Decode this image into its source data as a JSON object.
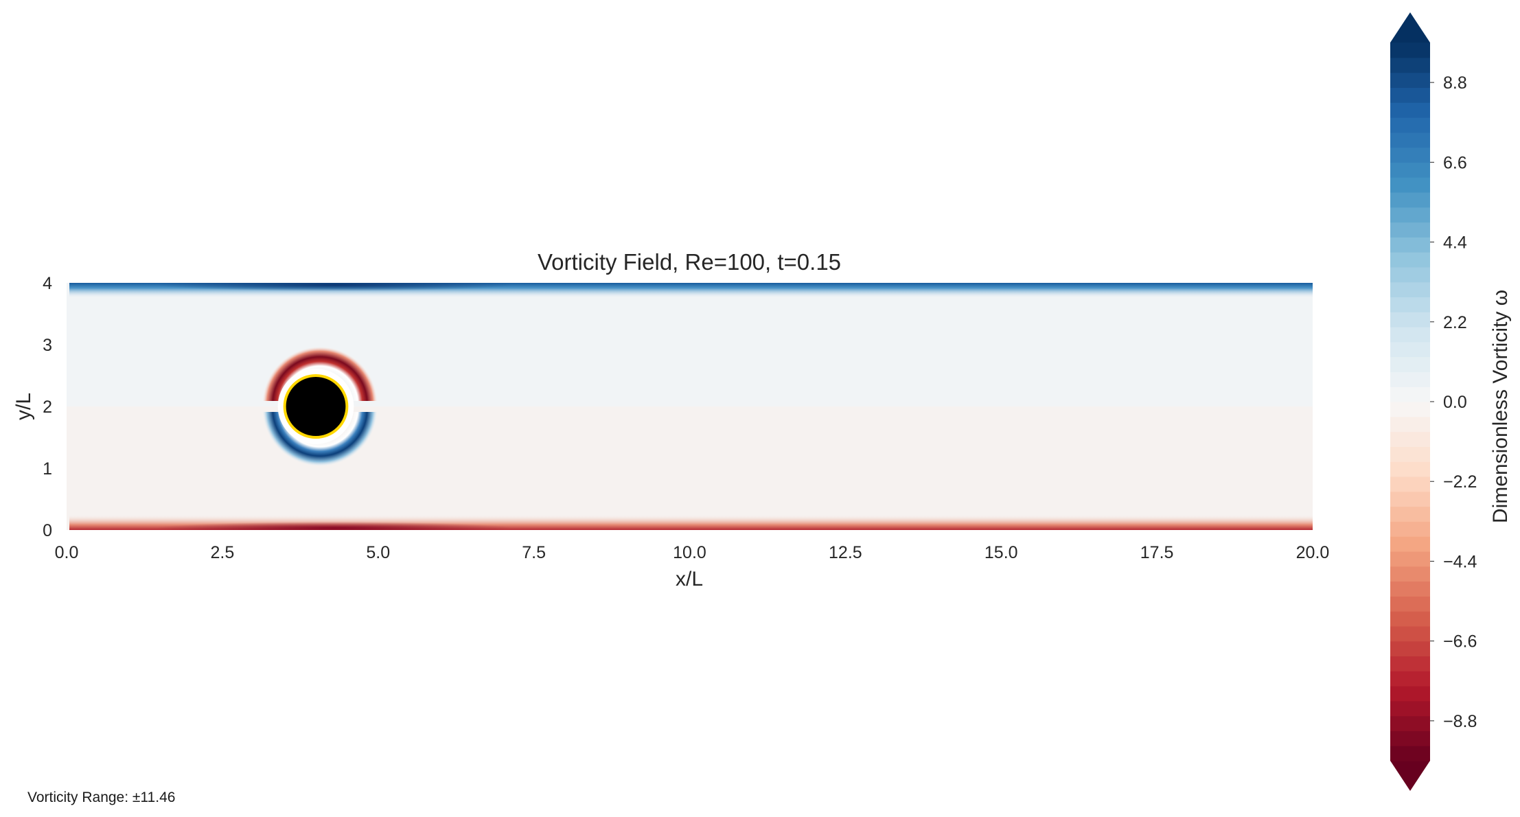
{
  "chart_data": {
    "type": "heatmap",
    "title": "Vorticity Field, Re=100, t=0.15",
    "xlabel": "x/L",
    "ylabel": "y/L",
    "xlim": [
      0,
      20
    ],
    "ylim": [
      0,
      4
    ],
    "xticks": [
      "0.0",
      "2.5",
      "5.0",
      "7.5",
      "10.0",
      "12.5",
      "15.0",
      "17.5",
      "20.0"
    ],
    "yticks": [
      "0",
      "1",
      "2",
      "3",
      "4"
    ],
    "colormap": "RdBu",
    "colorbar": {
      "label": "Dimensionless Vorticity ω",
      "range": [
        -9.9,
        9.9
      ],
      "extend": "both",
      "ticks": [
        "8.8",
        "6.6",
        "4.4",
        "2.2",
        "0.0",
        "−2.2",
        "−4.4",
        "−6.6",
        "−8.8"
      ]
    },
    "field": {
      "cylinder_center": [
        4.0,
        2.0
      ],
      "cylinder_radius": 0.5,
      "cylinder_fill": "#000000",
      "cylinder_outline": "#ffd700",
      "top_wall_vorticity": "positive",
      "bottom_wall_vorticity": "negative",
      "cylinder_upper_boundary_vorticity": "negative",
      "cylinder_lower_boundary_vorticity": "positive"
    },
    "annotation": "Vorticity Range: ±11.46"
  }
}
